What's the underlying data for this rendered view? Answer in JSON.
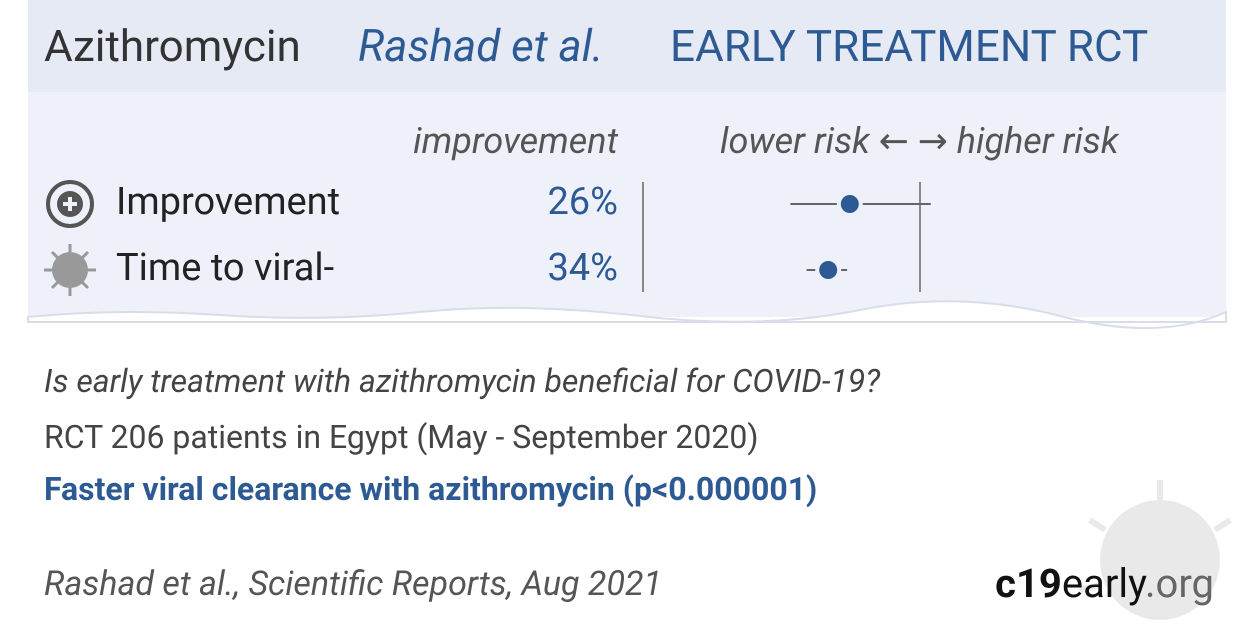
{
  "header": {
    "drug": "Azithromycin",
    "study": "Rashad et al.",
    "kind": "EARLY TREATMENT RCT"
  },
  "results": {
    "column_label": "improvement",
    "risk_label": "lower risk ← → higher risk",
    "rows": [
      {
        "name": "Improvement",
        "improvement": 26,
        "improvement_label": "26%",
        "ci": [
          48,
          -4
        ]
      },
      {
        "name": "Time to viral-",
        "improvement": 34,
        "improvement_label": "34%",
        "ci": [
          42,
          27
        ]
      }
    ]
  },
  "summary": {
    "question": "Is early treatment with azithromycin beneficial for COVID-19?",
    "design": "RCT 206 patients in Egypt (May - September 2020)",
    "finding": "Faster viral clearance with azithromycin (p<0.000001)"
  },
  "footer": {
    "citation": "Rashad et al., Scientific Reports, Aug 2021",
    "logo": [
      "c19",
      "early",
      ".org"
    ]
  }
}
